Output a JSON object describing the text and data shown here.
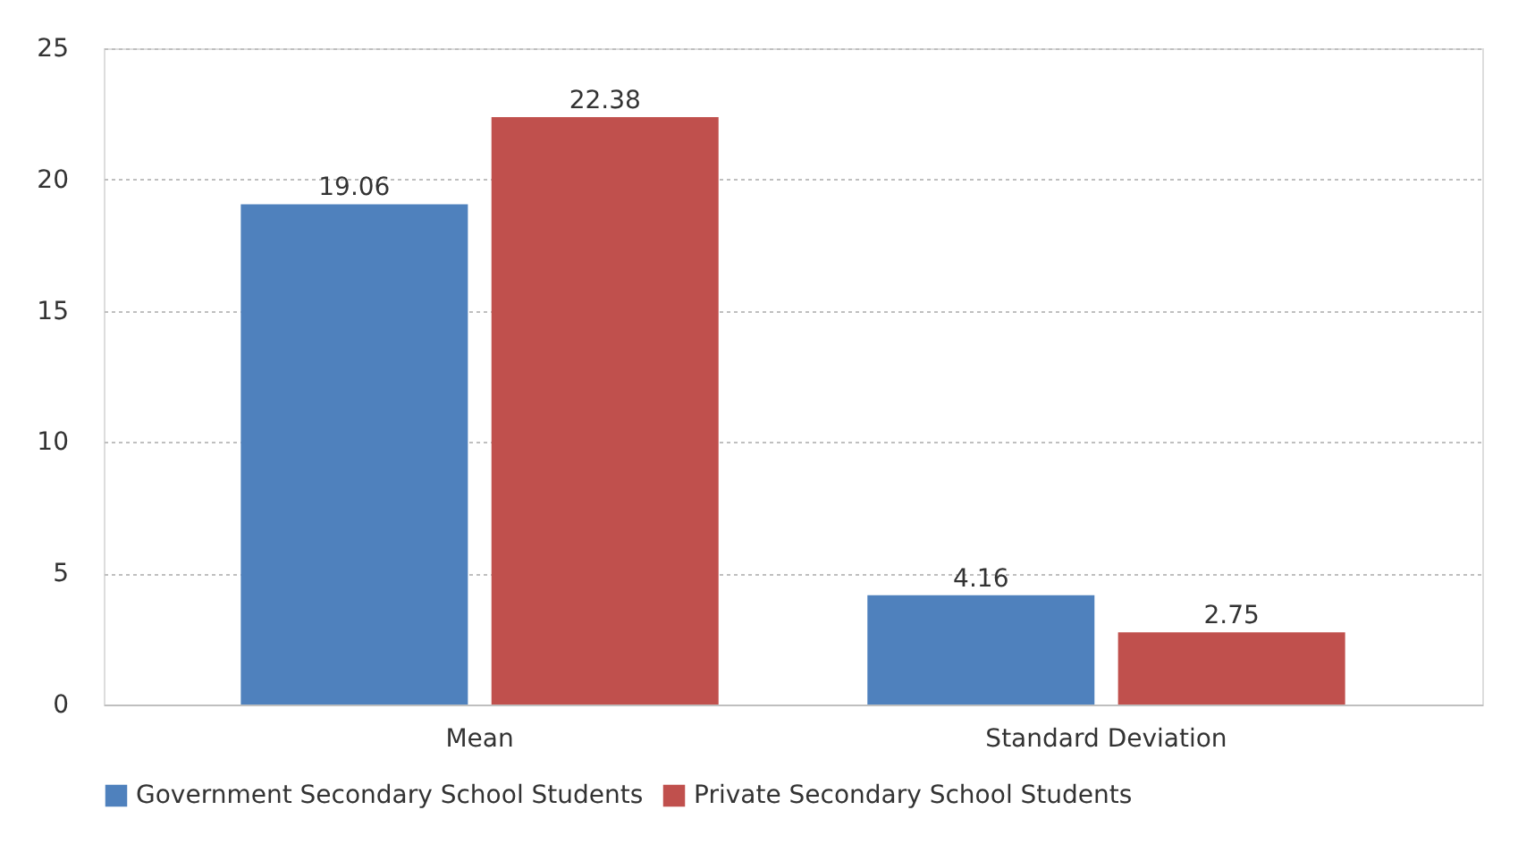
{
  "chart_data": {
    "type": "bar",
    "categories": [
      "Mean",
      "Standard Deviation"
    ],
    "series": [
      {
        "name": "Government Secondary School Students",
        "color": "#4f81bd",
        "values": [
          19.06,
          4.16
        ]
      },
      {
        "name": "Private Secondary School Students",
        "color": "#c0504d",
        "values": [
          22.38,
          2.75
        ]
      }
    ],
    "ylim": [
      0,
      25
    ],
    "yticks": [
      0,
      5,
      10,
      15,
      20,
      25
    ],
    "grid": "y",
    "legend": "bottom",
    "data_labels": true
  }
}
